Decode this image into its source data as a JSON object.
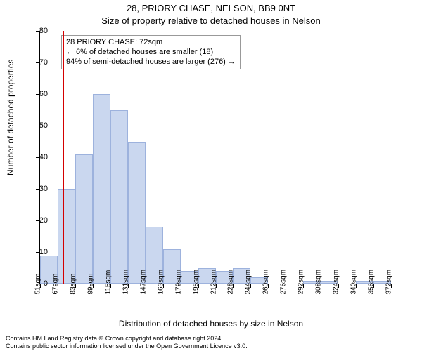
{
  "title": "28, PRIORY CHASE, NELSON, BB9 0NT",
  "subtitle": "Size of property relative to detached houses in Nelson",
  "ylabel": "Number of detached properties",
  "xlabel": "Distribution of detached houses by size in Nelson",
  "footer_line1": "Contains HM Land Registry data © Crown copyright and database right 2024.",
  "footer_line2": "Contains public sector information licensed under the Open Government Licence v3.0.",
  "annot": {
    "line1": "28 PRIORY CHASE: 72sqm",
    "line2": "← 6% of detached houses are smaller (18)",
    "line3": "94% of semi-detached houses are larger (276) →"
  },
  "chart": {
    "type": "histogram",
    "bar_fill": "#cad7ef",
    "bar_stroke": "#9db2dd",
    "refline_color": "#d40000",
    "refline_x_value": 72,
    "background": "#ffffff",
    "x_bin_width": 16,
    "x_start": 51,
    "ylim": [
      0,
      80
    ],
    "ytick_step": 10,
    "categories": [
      "51sqm",
      "67sqm",
      "83sqm",
      "99sqm",
      "115sqm",
      "131sqm",
      "147sqm",
      "163sqm",
      "179sqm",
      "195sqm",
      "212sqm",
      "228sqm",
      "244sqm",
      "260sqm",
      "276sqm",
      "292sqm",
      "308sqm",
      "324sqm",
      "340sqm",
      "356sqm",
      "372sqm"
    ],
    "values": [
      9,
      30,
      41,
      60,
      55,
      45,
      18,
      11,
      4,
      5,
      4,
      5,
      2,
      0,
      0,
      1,
      1,
      0,
      1,
      1,
      0
    ],
    "title_fontsize": 13,
    "label_fontsize": 12,
    "tick_fontsize": 11
  }
}
